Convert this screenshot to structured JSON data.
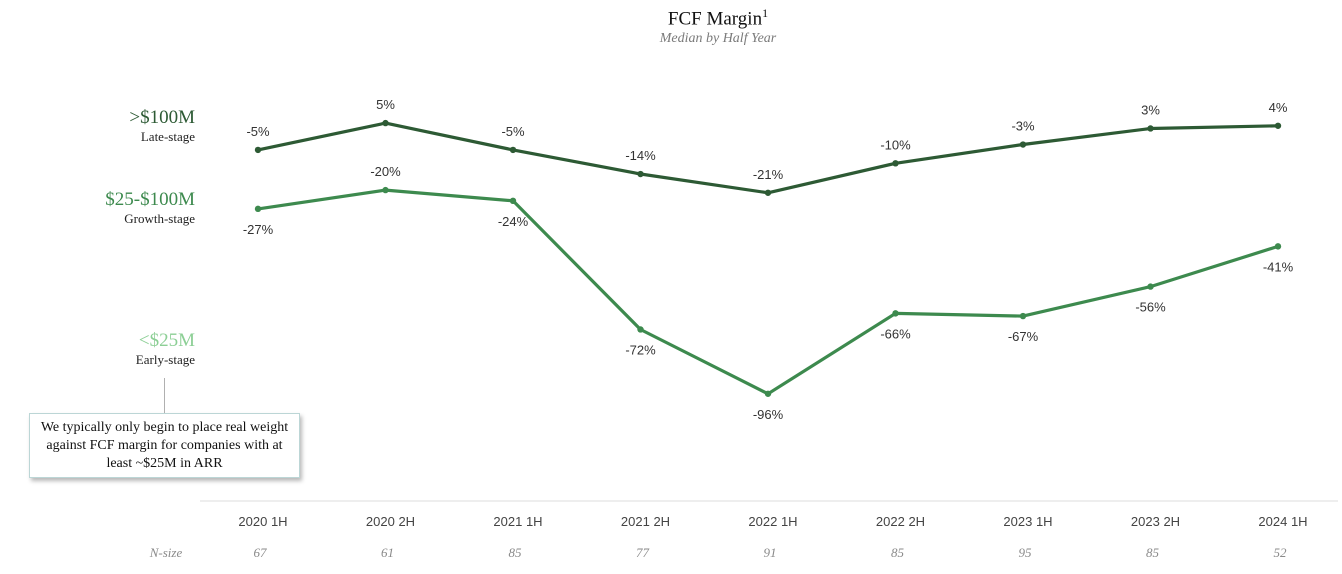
{
  "chart_data": {
    "type": "line",
    "title": "FCF Margin",
    "title_superscript": "1",
    "subtitle": "Median by Half Year",
    "categories": [
      "2020 1H",
      "2020 2H",
      "2021 1H",
      "2021 2H",
      "2022 1H",
      "2022 2H",
      "2023 1H",
      "2023 2H",
      "2024 1H"
    ],
    "series": [
      {
        "name": ">$100M",
        "stage": "Late-stage",
        "color": "#2d5a34",
        "values": [
          -5,
          5,
          -5,
          -14,
          -21,
          -10,
          -3,
          3,
          4
        ],
        "labels": [
          "-5%",
          "5%",
          "-5%",
          "-14%",
          "-21%",
          "-10%",
          "-3%",
          "3%",
          "4%"
        ]
      },
      {
        "name": "$25-$100M",
        "stage": "Growth-stage",
        "color": "#3d8a4e",
        "values": [
          -27,
          -20,
          -24,
          -72,
          -96,
          -66,
          -67,
          -56,
          -41
        ],
        "labels": [
          "-27%",
          "-20%",
          "-24%",
          "-72%",
          "-96%",
          "-66%",
          "-67%",
          "-56%",
          "-41%"
        ]
      }
    ],
    "legend_extra": {
      "name": "<$25M",
      "stage": "Early-stage",
      "color": "#8ccf95"
    },
    "n_size_label": "N-size",
    "n_size": [
      "67",
      "61",
      "85",
      "77",
      "91",
      "85",
      "95",
      "85",
      "52"
    ],
    "callout": "We typically only begin to place real weight against FCF margin for companies with at least ~$25M in ARR"
  }
}
